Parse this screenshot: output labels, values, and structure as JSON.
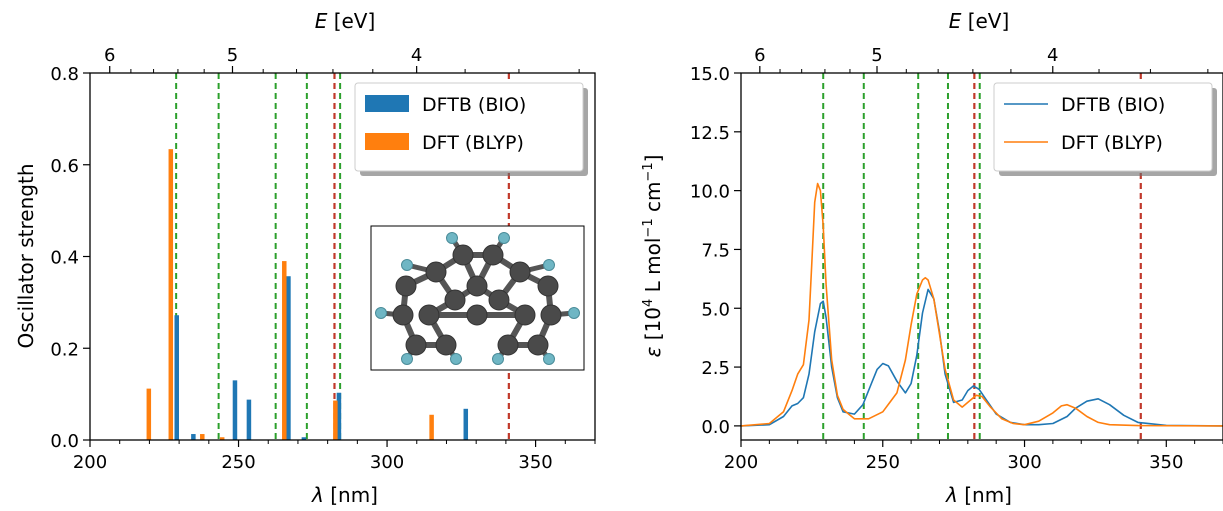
{
  "chart_data": [
    {
      "type": "bar",
      "xlabel": "λ [nm]",
      "ylabel": "Oscillator strength",
      "top_xlabel": "E [eV]",
      "xlim": [
        200,
        370
      ],
      "ylim": [
        0,
        0.8
      ],
      "xticks": [
        200,
        250,
        300,
        350
      ],
      "yticks": [
        "0.0",
        "0.2",
        "0.4",
        "0.6",
        "0.8"
      ],
      "yticks_values": [
        0,
        0.2,
        0.4,
        0.6,
        0.8
      ],
      "top_ticks": [
        {
          "label": "6",
          "ev": 6
        },
        {
          "label": "5",
          "ev": 5
        },
        {
          "label": "4",
          "ev": 4
        }
      ],
      "legend": {
        "position": "top-right",
        "entries": [
          "DFTB (BIO)",
          "DFT (BLYP)"
        ]
      },
      "series": [
        {
          "name": "DFTB (BIO)",
          "color": "#1f77b4",
          "points": [
            [
              229.2,
              0.272
            ],
            [
              234.8,
              0.013
            ],
            [
              248.8,
              0.13
            ],
            [
              253.5,
              0.088
            ],
            [
              266.8,
              0.357
            ],
            [
              272.0,
              0.006
            ],
            [
              283.8,
              0.103
            ],
            [
              326.5,
              0.068
            ]
          ]
        },
        {
          "name": "DFT (BLYP)",
          "color": "#ff7f0e",
          "points": [
            [
              219.8,
              0.112
            ],
            [
              227.2,
              0.634
            ],
            [
              237.8,
              0.013
            ],
            [
              244.5,
              0.006
            ],
            [
              265.4,
              0.39
            ],
            [
              282.6,
              0.086
            ],
            [
              315.0,
              0.055
            ]
          ]
        }
      ],
      "vlines_green": [
        229.0,
        243.3,
        262.5,
        273.0,
        284.2
      ],
      "vlines_red": [
        282.3,
        341.0
      ],
      "inset": "molecule"
    },
    {
      "type": "line",
      "xlabel": "λ [nm]",
      "ylabel": "ε [10⁴ L mol⁻¹ cm⁻¹]",
      "top_xlabel": "E [eV]",
      "xlim": [
        200,
        370
      ],
      "ylim": [
        -0.6,
        15
      ],
      "xticks": [
        200,
        250,
        300,
        350
      ],
      "yticks": [
        "0.0",
        "2.5",
        "5.0",
        "7.5",
        "10.0",
        "12.5",
        "15.0"
      ],
      "yticks_values": [
        0,
        2.5,
        5,
        7.5,
        10,
        12.5,
        15
      ],
      "top_ticks": [
        {
          "label": "6",
          "ev": 6
        },
        {
          "label": "5",
          "ev": 5
        },
        {
          "label": "4",
          "ev": 4
        }
      ],
      "legend": {
        "position": "top-right",
        "entries": [
          "DFTB (BIO)",
          "DFT (BLYP)"
        ]
      },
      "series": [
        {
          "name": "DFTB (BIO)",
          "color": "#1f77b4",
          "x": [
            200,
            210,
            215,
            218,
            220,
            222,
            224,
            226,
            228,
            229,
            230,
            232,
            234,
            236,
            240,
            243,
            246,
            248,
            250,
            252,
            255,
            258,
            260,
            262,
            264,
            266,
            268,
            270,
            272,
            275,
            278,
            280,
            282,
            284,
            286,
            290,
            295,
            300,
            305,
            310,
            315,
            318,
            322,
            326,
            330,
            335,
            340,
            350,
            370
          ],
          "y": [
            0,
            0.05,
            0.4,
            0.85,
            0.95,
            1.2,
            2.2,
            4.0,
            5.2,
            5.3,
            4.6,
            2.5,
            1.2,
            0.6,
            0.5,
            0.9,
            1.8,
            2.4,
            2.65,
            2.55,
            1.9,
            1.4,
            1.8,
            3.0,
            4.8,
            5.8,
            5.4,
            4.0,
            2.2,
            1.0,
            1.1,
            1.5,
            1.7,
            1.55,
            1.2,
            0.5,
            0.15,
            0.05,
            0.05,
            0.1,
            0.4,
            0.75,
            1.05,
            1.15,
            0.9,
            0.45,
            0.15,
            0.02,
            0
          ]
        },
        {
          "name": "DFT (BLYP)",
          "color": "#ff7f0e",
          "x": [
            200,
            210,
            215,
            218,
            220,
            222,
            224,
            225,
            226,
            227,
            228,
            229,
            230,
            232,
            234,
            236,
            238,
            240,
            245,
            250,
            255,
            258,
            260,
            262,
            264,
            265,
            266,
            268,
            270,
            272,
            275,
            278,
            280,
            283,
            285,
            288,
            292,
            296,
            300,
            305,
            310,
            313,
            315,
            318,
            322,
            326,
            330,
            340,
            370
          ],
          "y": [
            0,
            0.1,
            0.6,
            1.5,
            2.2,
            2.6,
            4.5,
            7.0,
            9.5,
            10.3,
            10.0,
            8.5,
            6.0,
            2.8,
            1.3,
            0.7,
            0.5,
            0.3,
            0.3,
            0.6,
            1.4,
            2.8,
            4.3,
            5.6,
            6.2,
            6.3,
            6.2,
            5.4,
            3.9,
            2.4,
            1.1,
            0.8,
            1.0,
            1.3,
            1.25,
            0.8,
            0.3,
            0.1,
            0.05,
            0.2,
            0.55,
            0.85,
            0.9,
            0.75,
            0.4,
            0.15,
            0.05,
            0.01,
            0
          ]
        }
      ],
      "vlines_green": [
        229.0,
        243.3,
        262.5,
        273.0,
        284.2
      ],
      "vlines_red": [
        282.3,
        341.0
      ]
    }
  ]
}
